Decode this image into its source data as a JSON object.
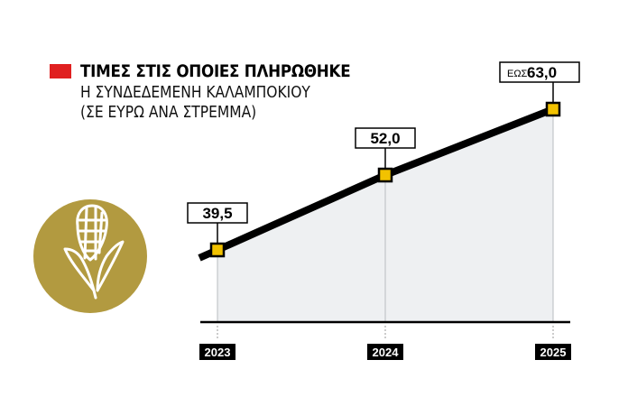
{
  "header": {
    "title": "ΤΙΜΕΣ ΣΤΙΣ ΟΠΟΙΕΣ ΠΛΗΡΩΘΗΚΕ",
    "subtitle_line1": "Η ΣΥΝΔΕΔΕΜΕΝΗ ΚΑΛΑΜΠΟΚΙΟΥ",
    "subtitle_line2": "(ΣΕ ΕΥΡΩ ΑΝΑ ΣΤΡΕΜΜΑ)"
  },
  "icon": "corn-icon",
  "colors": {
    "accent_red": "#e02020",
    "marker_yellow": "#f2c200",
    "icon_gold": "#b29a40",
    "line": "#000000",
    "area_fill": "#eef0f2"
  },
  "chart_data": {
    "type": "line",
    "categories": [
      "2023",
      "2024",
      "2025"
    ],
    "values": [
      39.5,
      52.0,
      63.0
    ],
    "data_labels": [
      "39,5",
      "52,0",
      "63,0"
    ],
    "label_prefixes": [
      "",
      "",
      "ΕΩΣ"
    ],
    "title": "ΤΙΜΕΣ ΣΤΙΣ ΟΠΟΙΕΣ ΠΛΗΡΩΘΗΚΕ",
    "xlabel": "",
    "ylabel": "",
    "grid": false
  }
}
